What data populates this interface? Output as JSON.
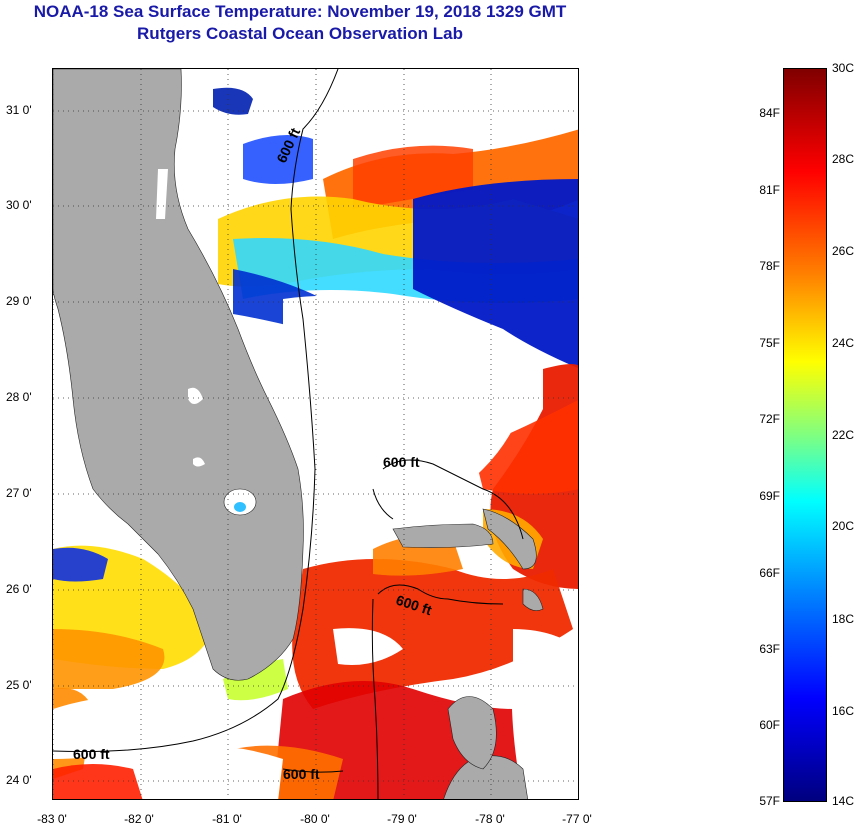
{
  "header": {
    "title_line1": "NOAA-18 Sea Surface Temperature:  November 19, 2018 1329 GMT",
    "title_line2": "Rutgers Coastal Ocean Observation Lab"
  },
  "map": {
    "lat_labels": [
      "31 0'",
      "30 0'",
      "29 0'",
      "28 0'",
      "27 0'",
      "26 0'",
      "25 0'",
      "24 0'"
    ],
    "lon_labels": [
      "-83 0'",
      "-82 0'",
      "-81 0'",
      "-80 0'",
      "-79 0'",
      "-78 0'",
      "-77 0'"
    ],
    "contour_labels": [
      "600 ft",
      "600 ft",
      "600 ft",
      "600 ft",
      "600 ft"
    ],
    "colors": {
      "land": "#aaaaaa",
      "cloud": "#ffffff",
      "grid": "#333333"
    }
  },
  "colorbar": {
    "fahrenheit_labels": [
      "84F",
      "81F",
      "78F",
      "75F",
      "72F",
      "69F",
      "66F",
      "63F",
      "60F",
      "57F"
    ],
    "celsius_labels": [
      "30C",
      "28C",
      "26C",
      "24C",
      "22C",
      "20C",
      "18C",
      "16C",
      "14C"
    ]
  }
}
